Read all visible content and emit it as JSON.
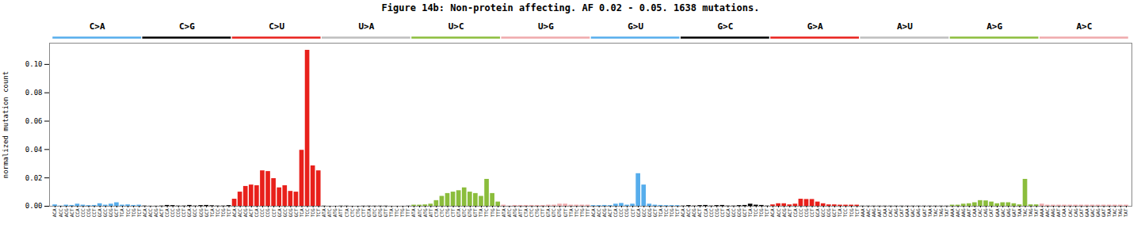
{
  "chart_data": {
    "type": "bar",
    "title": "Figure 14b: Non-protein affecting. AF 0.02 - 0.05. 1638 mutations.",
    "ylabel": "normalized mutation count",
    "ylim": [
      0,
      0.115
    ],
    "yticks": [
      {
        "value": 0.0,
        "label": "0.00"
      },
      0.02,
      0.04,
      0.06,
      0.08,
      {
        "value": 0.1,
        "label": "0.10"
      }
    ],
    "grid": false,
    "series": [
      {
        "name": "C>A",
        "color": "#56ADEC",
        "categories": [
          "ACA",
          "ACC",
          "ACG",
          "ACT",
          "CCA",
          "CCC",
          "CCG",
          "CCT",
          "GCA",
          "GCC",
          "GCG",
          "GCT",
          "TCA",
          "TCC",
          "TCG",
          "TCT"
        ],
        "values": [
          0.001,
          0.0002,
          0.0008,
          0.0006,
          0.0015,
          0.0008,
          0.0005,
          0.0006,
          0.0018,
          0.0008,
          0.0015,
          0.0025,
          0.0008,
          0.001,
          0.0006,
          0.0008
        ]
      },
      {
        "name": "C>G",
        "color": "#000000",
        "categories": [
          "ACA",
          "ACC",
          "ACG",
          "ACT",
          "CCA",
          "CCC",
          "CCG",
          "CCT",
          "GCA",
          "GCC",
          "GCG",
          "GCT",
          "TCA",
          "TCC",
          "TCG",
          "TCT"
        ],
        "values": [
          0.0002,
          0.0001,
          0.0001,
          0.0002,
          0.0006,
          0.0005,
          0.0002,
          0.0002,
          0.0006,
          0.0002,
          0.0005,
          0.0006,
          0.0004,
          0.0002,
          0.0002,
          0.0005
        ]
      },
      {
        "name": "C>U",
        "color": "#E8201B",
        "categories": [
          "ACA",
          "ACC",
          "ACG",
          "ACT",
          "CCA",
          "CCC",
          "CCG",
          "CCT",
          "GCA",
          "GCC",
          "GCG",
          "GCT",
          "TCA",
          "TCC",
          "TCG",
          "TCT"
        ],
        "values": [
          0.005,
          0.01,
          0.014,
          0.015,
          0.0145,
          0.025,
          0.0245,
          0.0195,
          0.013,
          0.0145,
          0.0105,
          0.01,
          0.0395,
          0.11,
          0.0285,
          0.025
        ]
      },
      {
        "name": "U>A",
        "color": "#BEBEBE",
        "categories": [
          "ATA",
          "ATC",
          "ATG",
          "ATT",
          "CTA",
          "CTC",
          "CTG",
          "CTT",
          "GTA",
          "GTC",
          "GTG",
          "GTT",
          "TTA",
          "TTC",
          "TTG",
          "TTT"
        ],
        "values": [
          0.0005,
          0.0002,
          0.0002,
          0.0006,
          0.0006,
          0.0002,
          0.0002,
          0.0005,
          0.0006,
          0.0005,
          0.0006,
          0.0006,
          0.0002,
          0.0002,
          0.0002,
          0.0006
        ]
      },
      {
        "name": "U>C",
        "color": "#8BBD3C",
        "categories": [
          "ATA",
          "ATC",
          "ATG",
          "ATT",
          "CTA",
          "CTC",
          "CTG",
          "CTT",
          "GTA",
          "GTC",
          "GTG",
          "GTT",
          "TTA",
          "TTC",
          "TTG",
          "TTT"
        ],
        "values": [
          0.0008,
          0.0008,
          0.001,
          0.0015,
          0.004,
          0.007,
          0.009,
          0.01,
          0.011,
          0.013,
          0.01,
          0.009,
          0.007,
          0.019,
          0.009,
          0.003
        ]
      },
      {
        "name": "U>G",
        "color": "#EFA9AB",
        "categories": [
          "ATA",
          "ATC",
          "ATG",
          "ATT",
          "CTA",
          "CTC",
          "CTG",
          "CTT",
          "GTA",
          "GTC",
          "GTG",
          "GTT",
          "TTA",
          "TTC",
          "TTG",
          "TTT"
        ],
        "values": [
          0.0008,
          0.0002,
          0.0006,
          0.0006,
          0.0006,
          0.0006,
          0.0006,
          0.0006,
          0.0008,
          0.0008,
          0.0015,
          0.0015,
          0.0008,
          0.0008,
          0.0008,
          0.0008
        ]
      },
      {
        "name": "G>U",
        "color": "#56ADEC",
        "categories": [
          "ACA",
          "ACC",
          "ACG",
          "ACT",
          "CCA",
          "CCC",
          "CCG",
          "CCT",
          "GCA",
          "GCC",
          "GCG",
          "GCT",
          "TCA",
          "TCC",
          "TCG",
          "TCT"
        ],
        "values": [
          0.0005,
          0.0005,
          0.0006,
          0.0005,
          0.0015,
          0.002,
          0.0008,
          0.0015,
          0.023,
          0.015,
          0.0015,
          0.0008,
          0.0006,
          0.0005,
          0.0005,
          0.0005
        ]
      },
      {
        "name": "G>C",
        "color": "#000000",
        "categories": [
          "ACA",
          "ACC",
          "ACG",
          "ACT",
          "CCA",
          "CCC",
          "CCG",
          "CCT",
          "GCA",
          "GCC",
          "GCG",
          "GCT",
          "TCA",
          "TCC",
          "TCG",
          "TCT"
        ],
        "values": [
          0.0002,
          0.0005,
          0.0002,
          0.0005,
          0.0006,
          0.0002,
          0.0005,
          0.0006,
          0.0002,
          0.0002,
          0.0005,
          0.0006,
          0.0015,
          0.0008,
          0.0006,
          0.0002
        ]
      },
      {
        "name": "G>A",
        "color": "#E8201B",
        "categories": [
          "ACA",
          "ACC",
          "ACG",
          "ACT",
          "CCA",
          "CCC",
          "CCG",
          "CCT",
          "GCA",
          "GCC",
          "GCG",
          "GCT",
          "TCA",
          "TCC",
          "TCG",
          "TCT"
        ],
        "values": [
          0.001,
          0.0018,
          0.0018,
          0.001,
          0.0015,
          0.005,
          0.0048,
          0.0048,
          0.003,
          0.0018,
          0.001,
          0.001,
          0.0008,
          0.0008,
          0.0008,
          0.0008
        ]
      },
      {
        "name": "A>U",
        "color": "#BEBEBE",
        "categories": [
          "AAA",
          "AAC",
          "AAG",
          "AAT",
          "CAA",
          "CAC",
          "CAG",
          "CAT",
          "GAA",
          "GAC",
          "GAG",
          "GAT",
          "TAA",
          "TAC",
          "TAG",
          "TAT"
        ],
        "values": [
          0.0006,
          0.0006,
          0.0006,
          0.0006,
          0.0006,
          0.0006,
          0.0006,
          0.0006,
          0.0006,
          0.0006,
          0.0006,
          0.0006,
          0.0006,
          0.0006,
          0.0006,
          0.0006
        ]
      },
      {
        "name": "A>G",
        "color": "#8BBD3C",
        "categories": [
          "AAA",
          "AAC",
          "AAG",
          "AAT",
          "CAA",
          "CAC",
          "CAG",
          "CAT",
          "GAA",
          "GAC",
          "GAG",
          "GAT",
          "TAA",
          "TAC",
          "TAG",
          "TAT"
        ],
        "values": [
          0.0008,
          0.0008,
          0.0015,
          0.0018,
          0.0025,
          0.004,
          0.0038,
          0.003,
          0.0018,
          0.0025,
          0.0025,
          0.0018,
          0.001,
          0.019,
          0.001,
          0.001
        ]
      },
      {
        "name": "A>C",
        "color": "#EFA9AB",
        "categories": [
          "AAA",
          "AAC",
          "AAG",
          "AAT",
          "CAA",
          "CAC",
          "CAG",
          "CAT",
          "GAA",
          "GAC",
          "GAG",
          "GAT",
          "TAA",
          "TAC",
          "TAG",
          "TAT"
        ],
        "values": [
          0.0015,
          0.0008,
          0.0008,
          0.0008,
          0.0008,
          0.0008,
          0.0008,
          0.0008,
          0.0008,
          0.0008,
          0.0008,
          0.0008,
          0.0008,
          0.0008,
          0.0008,
          0.0008
        ]
      }
    ]
  }
}
